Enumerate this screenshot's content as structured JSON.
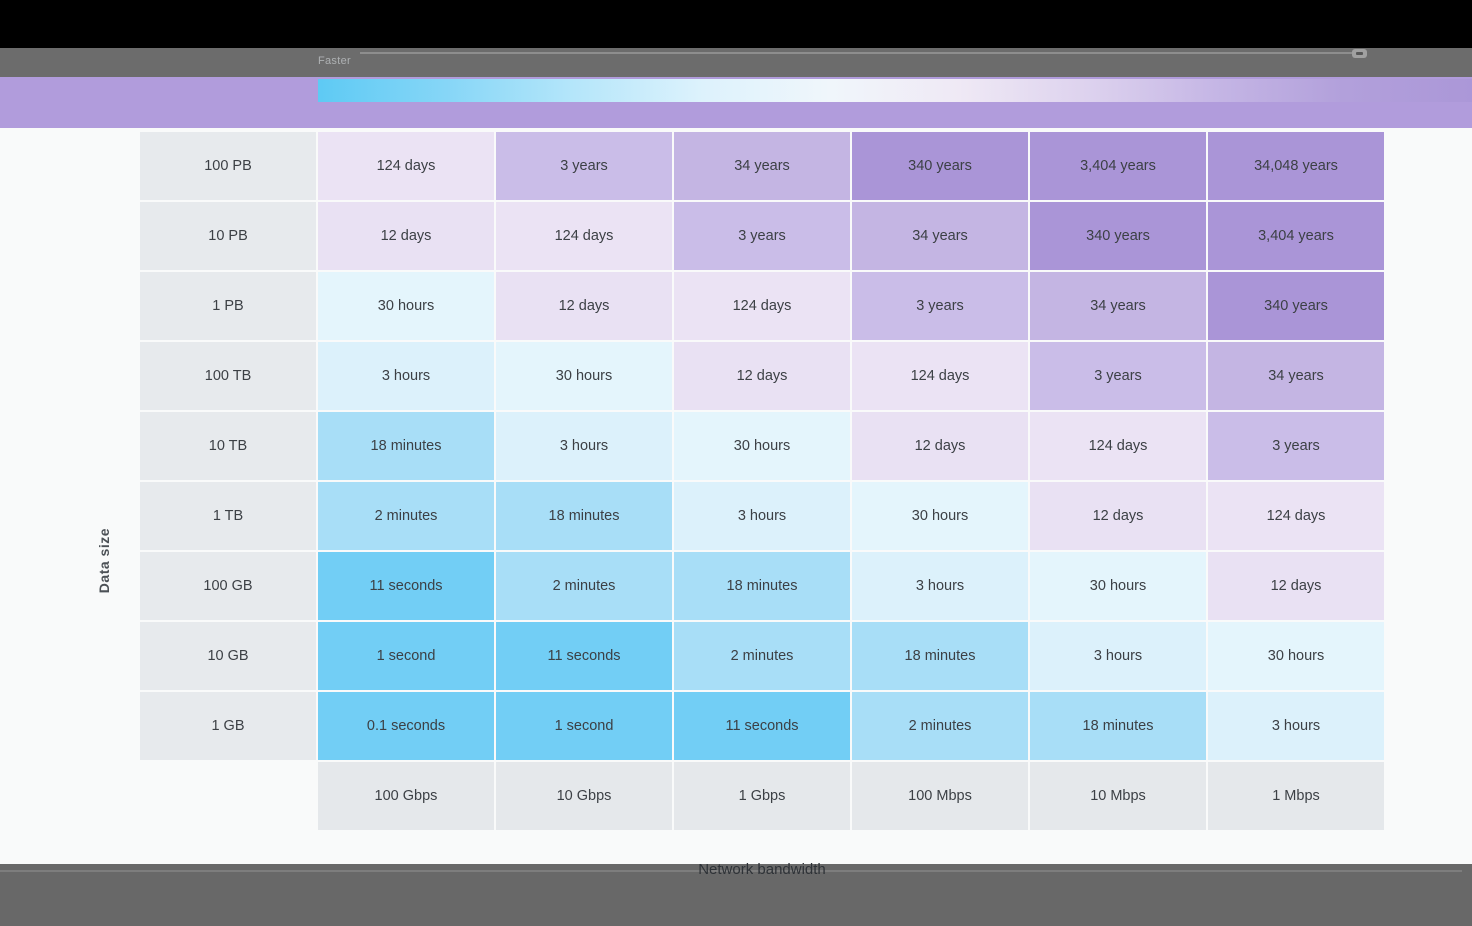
{
  "chrome": {
    "legend_direction_label": "Faster"
  },
  "colors": {
    "page_bg": "#f9fafa",
    "top_black_bar": "#000000",
    "toolbar_bar": "#6c6c6c",
    "bottom_bar": "#686868",
    "accent_band": "#b19cdc",
    "row_header_bg": "#e7eaed",
    "speed_header_bg": "#e5e8eb",
    "cell_text": "#3c4045"
  },
  "legend": {
    "gradient_stops": [
      "#5ecaf4",
      "#86d6f7",
      "#b5e6fa",
      "#ddf2fc",
      "#f0f6fb",
      "#efe9f5",
      "#ddd2ee",
      "#c5b6e5",
      "#b2a0db",
      "#ab97d8"
    ]
  },
  "chart_data": {
    "type": "heatmap",
    "title": "",
    "ylabel": "Data size",
    "xlabel": "Network bandwidth",
    "rows": [
      "100 PB",
      "10 PB",
      "1 PB",
      "100 TB",
      "10 TB",
      "1 TB",
      "100 GB",
      "10 GB",
      "1 GB"
    ],
    "columns": [
      "100 Gbps",
      "10 Gbps",
      "1 Gbps",
      "100 Mbps",
      "10 Mbps",
      "1 Mbps"
    ],
    "cells": [
      [
        "124 days",
        "3 years",
        "34 years",
        "340 years",
        "3,404 years",
        "34,048 years"
      ],
      [
        "12 days",
        "124 days",
        "3 years",
        "34 years",
        "340 years",
        "3,404 years"
      ],
      [
        "30 hours",
        "12 days",
        "124 days",
        "3 years",
        "34 years",
        "340 years"
      ],
      [
        "3 hours",
        "30 hours",
        "12 days",
        "124 days",
        "3 years",
        "34 years"
      ],
      [
        "18 minutes",
        "3 hours",
        "30 hours",
        "12 days",
        "124 days",
        "3 years"
      ],
      [
        "2 minutes",
        "18 minutes",
        "3 hours",
        "30 hours",
        "12 days",
        "124 days"
      ],
      [
        "11 seconds",
        "2 minutes",
        "18 minutes",
        "3 hours",
        "30 hours",
        "12 days"
      ],
      [
        "1 second",
        "11 seconds",
        "2 minutes",
        "18 minutes",
        "3 hours",
        "30 hours"
      ],
      [
        "0.1 seconds",
        "1 second",
        "11 seconds",
        "2 minutes",
        "18 minutes",
        "3 hours"
      ]
    ],
    "color_scale": {
      "0.1 seconds": "#72cef5",
      "1 second": "#72cef5",
      "11 seconds": "#72cef5",
      "2 minutes": "#a8def7",
      "18 minutes": "#a8def7",
      "3 hours": "#dcf1fb",
      "30 hours": "#e4f5fc",
      "12 days": "#e9e1f3",
      "124 days": "#ebe3f4",
      "3 years": "#cabde8",
      "34 years": "#c4b5e3",
      "340 years": "#aa95d7",
      "3,404 years": "#aa95d7",
      "34,048 years": "#aa95d7"
    },
    "legend_note": "blue = shorter transfer time, purple = longer transfer time",
    "grid": false,
    "legend_position": "top"
  }
}
